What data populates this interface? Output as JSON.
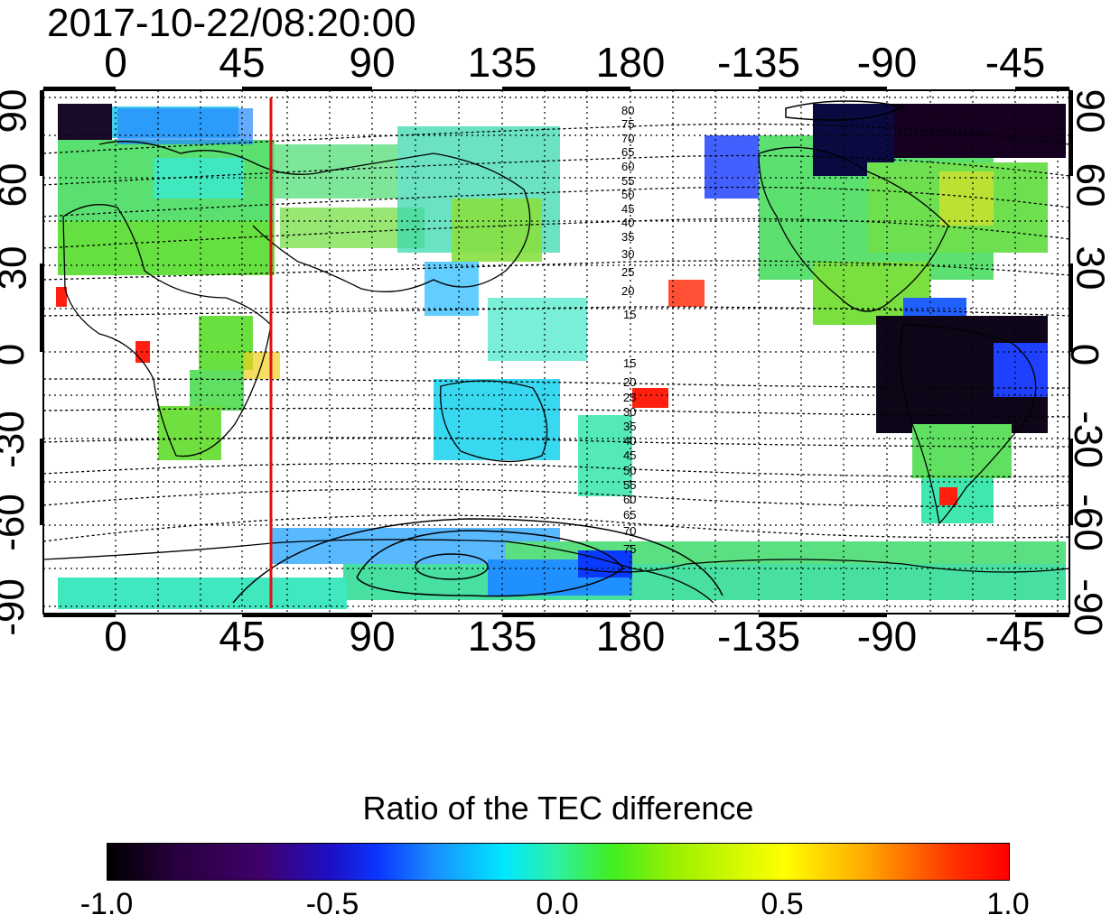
{
  "timestamp": "2017-10-22/08:20:00",
  "longitude_ticks": [
    "0",
    "45",
    "90",
    "135",
    "180",
    "-135",
    "-90",
    "-45"
  ],
  "latitude_ticks_left": [
    "-90",
    "-60",
    "-30",
    "0",
    "30",
    "60",
    "90"
  ],
  "latitude_ticks_right": [
    "-90",
    "-60",
    "-30",
    "0",
    "30",
    "60",
    "90"
  ],
  "contour_labels": [
    "80",
    "75",
    "70",
    "65",
    "60",
    "55",
    "50",
    "45",
    "40",
    "35",
    "30",
    "25",
    "20",
    "15",
    "15",
    "20",
    "25",
    "30",
    "35",
    "40",
    "45",
    "50",
    "55",
    "60",
    "65",
    "70",
    "75"
  ],
  "colorbar": {
    "title": "Ratio of the TEC difference",
    "tick_labels": [
      "-1.0",
      "-0.5",
      "0.0",
      "0.5",
      "1.0"
    ],
    "min": -1.0,
    "max": 1.0
  },
  "marker_longitude": 55,
  "colors": {
    "marker": "#dd1111",
    "coast": "#000000"
  }
}
